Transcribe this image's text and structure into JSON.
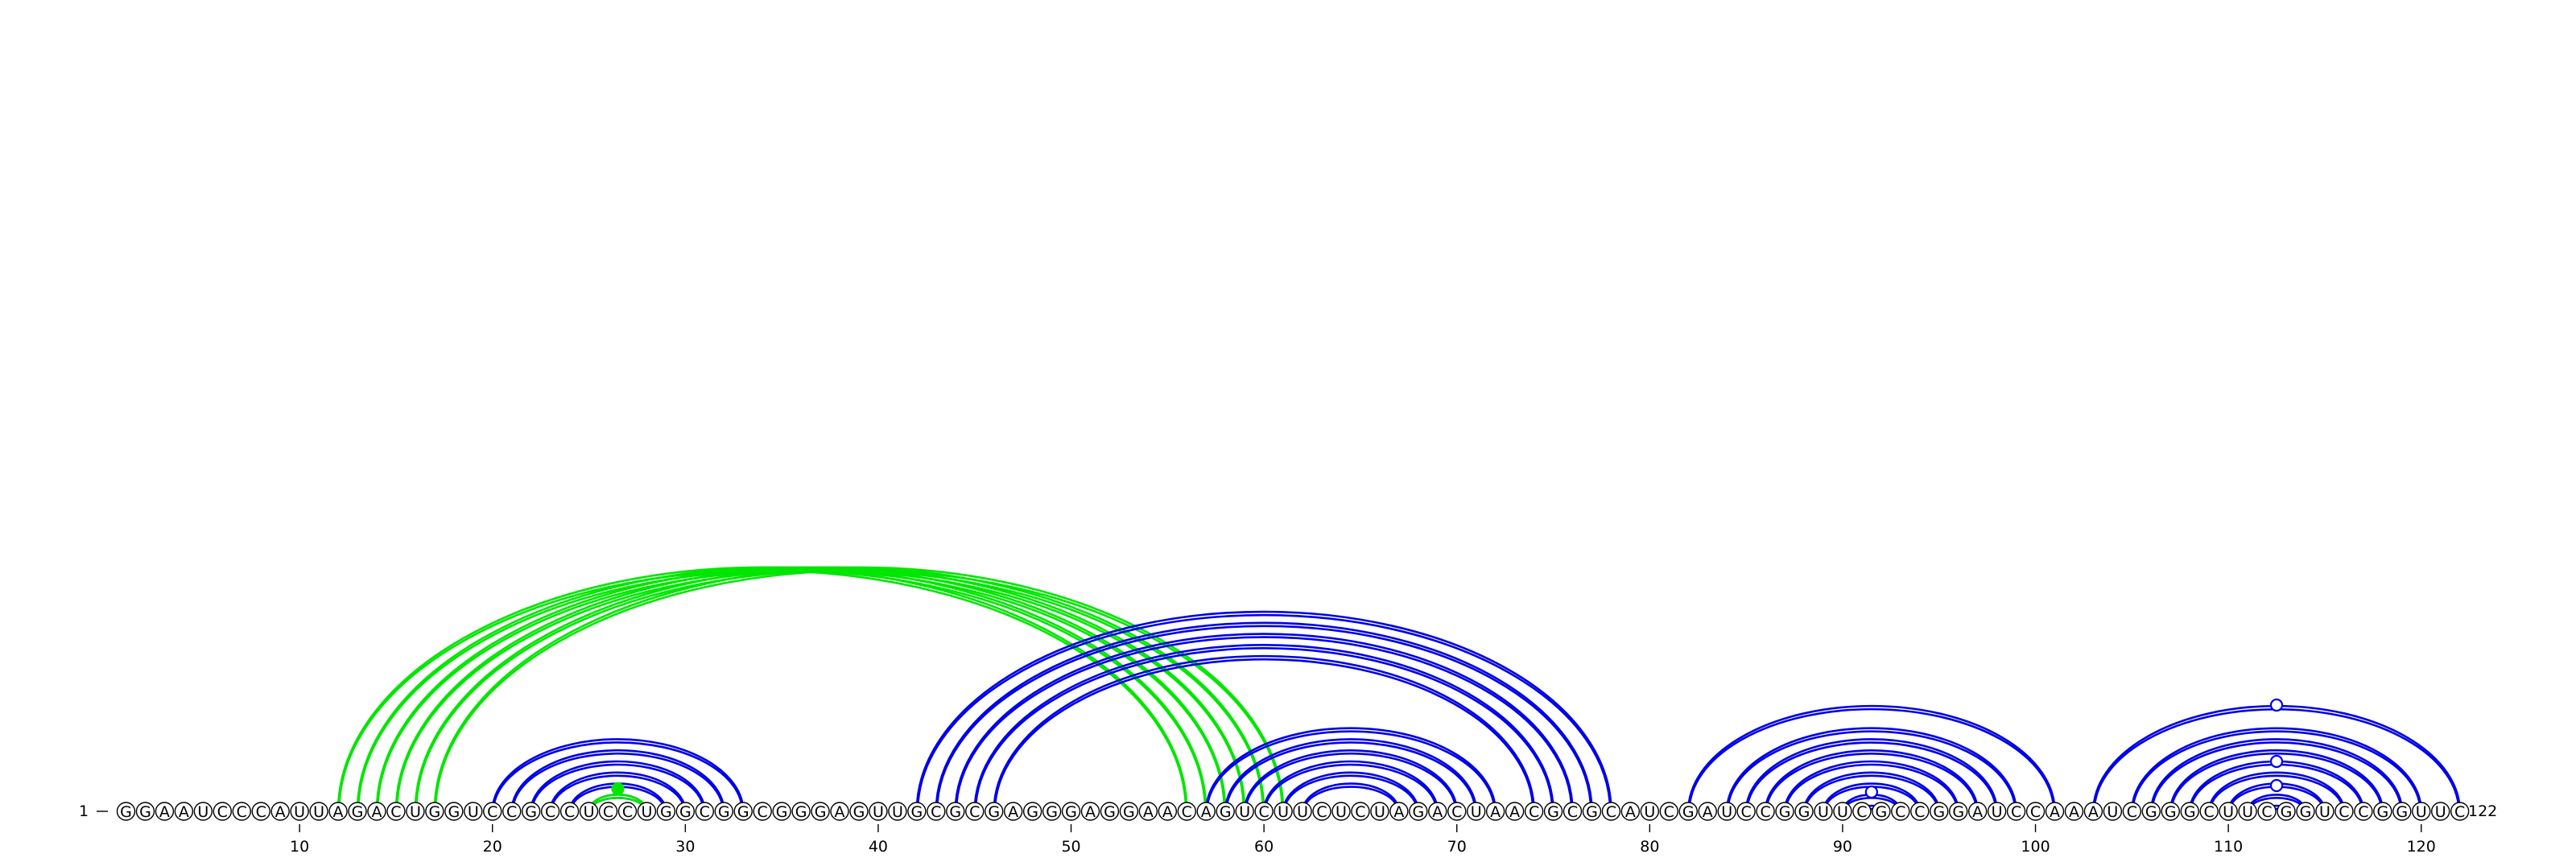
{
  "sequence": "GGAAUCCCAUUAGACUGGUCCGCCUCCUGGCGGCGGGAGUUGCGCGAGGGAGGAACAGUCUUCUCUAGACUAACGCGCAUCGAUCCGGUUCGCCGGAUCCAAAUCGGGCUUCGGUCCGGUUC",
  "start_label": "1",
  "end_label": "122",
  "ticks": [
    "10",
    "20",
    "30",
    "40",
    "50",
    "60",
    "70",
    "80",
    "90",
    "100",
    "110",
    "120"
  ],
  "colors": {
    "blue": "#0000e8",
    "green": "#00e600"
  },
  "arc_groups": [
    {
      "color": "green",
      "pairs": [
        [
          12,
          56
        ],
        [
          13,
          57
        ],
        [
          14,
          58
        ],
        [
          15,
          59
        ],
        [
          16,
          60
        ],
        [
          17,
          61
        ]
      ],
      "marker": null
    },
    {
      "color": "blue",
      "pairs": [
        [
          20,
          33
        ],
        [
          21,
          32
        ],
        [
          22,
          31
        ],
        [
          23,
          30
        ],
        [
          24,
          29
        ],
        [
          25,
          28
        ]
      ],
      "marker": null
    },
    {
      "color": "green",
      "pairs": [
        [
          25,
          28
        ]
      ],
      "marker": {
        "position": 26.5,
        "style": "filled"
      }
    },
    {
      "color": "blue",
      "pairs": [
        [
          42,
          78
        ],
        [
          43,
          77
        ],
        [
          44,
          76
        ],
        [
          45,
          75
        ],
        [
          46,
          74
        ]
      ],
      "marker": null
    },
    {
      "color": "blue",
      "pairs": [
        [
          57,
          72
        ],
        [
          58,
          71
        ],
        [
          59,
          70
        ],
        [
          60,
          69
        ],
        [
          61,
          68
        ],
        [
          62,
          67
        ]
      ],
      "marker": null
    },
    {
      "color": "blue",
      "pairs": [
        [
          82,
          101
        ],
        [
          84,
          99
        ],
        [
          85,
          98
        ],
        [
          86,
          97
        ],
        [
          87,
          96
        ],
        [
          88,
          95
        ],
        [
          89,
          94
        ],
        [
          90,
          93
        ],
        [
          91,
          92
        ]
      ],
      "marker": {
        "position": 91.5,
        "style": "hollow"
      }
    },
    {
      "color": "blue",
      "pairs": [
        [
          103,
          122
        ],
        [
          105,
          120
        ],
        [
          106,
          119
        ],
        [
          107,
          118
        ],
        [
          108,
          117
        ],
        [
          109,
          116
        ],
        [
          110,
          115
        ],
        [
          111,
          114
        ]
      ],
      "marker": {
        "position": 112.5,
        "style": "hollow"
      }
    },
    {
      "color": "blue",
      "pairs": [
        [
          112,
          113
        ]
      ],
      "marker": null
    }
  ],
  "extra_markers": [
    {
      "position": 112.5,
      "level": 62,
      "color": "blue",
      "style": "hollow"
    },
    {
      "position": 112.5,
      "level": 132,
      "color": "blue",
      "style": "hollow"
    }
  ]
}
